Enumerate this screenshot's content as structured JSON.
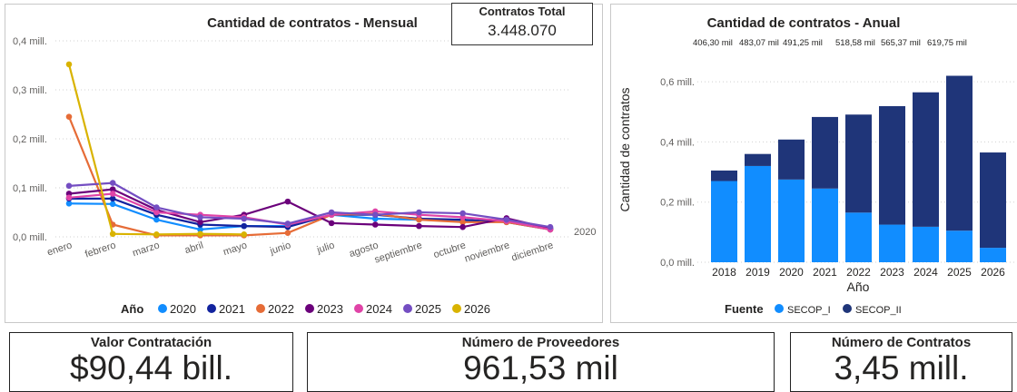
{
  "monthly": {
    "title": "Cantidad de contratos - Mensual",
    "y_ticks": [
      "0,0 mill.",
      "0,1 mill.",
      "0,2 mill.",
      "0,3 mill.",
      "0,4 mill."
    ],
    "end_label": "2020",
    "legend_title": "Año",
    "total_label": "Contratos Total",
    "total_value": "3.448.070"
  },
  "annual": {
    "title": "Cantidad de contratos - Anual",
    "y_ticks": [
      "0,0 mill.",
      "0,2 mill.",
      "0,4 mill.",
      "0,6 mill."
    ],
    "ylabel": "Cantidad de contratos",
    "xlabel": "Año",
    "legend_title": "Fuente"
  },
  "kpis": {
    "valor_label": "Valor Contratación",
    "valor_value": "$90,44 bill.",
    "proveedores_label": "Número de Proveedores",
    "proveedores_value": "961,53 mil",
    "contratos_label": "Número de Contratos",
    "contratos_value": "3,45 mill."
  },
  "colors": {
    "2020": "#118DFF",
    "2021": "#12239E",
    "2022": "#E66C37",
    "2023": "#6B007B",
    "2024": "#E044A7",
    "2025": "#744EC2",
    "2026": "#D9B300",
    "SECOP_I": "#118DFF",
    "SECOP_II": "#1F3579"
  },
  "chart_data": [
    {
      "type": "line",
      "title": "Cantidad de contratos - Mensual",
      "categories": [
        "enero",
        "febrero",
        "marzo",
        "abril",
        "mayo",
        "junio",
        "julio",
        "agosto",
        "septiembre",
        "octubre",
        "noviembre",
        "diciembre"
      ],
      "ylim": [
        0,
        0.4
      ],
      "unit": "mill.",
      "series": [
        {
          "name": "2020",
          "values": [
            0.068,
            0.067,
            0.035,
            0.015,
            0.022,
            0.022,
            0.045,
            0.037,
            0.035,
            0.032,
            0.033,
            0.018
          ]
        },
        {
          "name": "2021",
          "values": [
            0.078,
            0.078,
            0.045,
            0.025,
            0.022,
            0.02,
            0.045,
            0.045,
            0.037,
            0.035,
            0.03,
            0.015
          ]
        },
        {
          "name": "2022",
          "values": [
            0.245,
            0.025,
            0.003,
            0.003,
            0.003,
            0.008,
            0.045,
            0.047,
            0.035,
            0.03,
            0.03,
            0.015
          ]
        },
        {
          "name": "2023",
          "values": [
            0.088,
            0.097,
            0.055,
            0.03,
            0.045,
            0.072,
            0.028,
            0.025,
            0.022,
            0.02,
            0.038,
            0.017
          ]
        },
        {
          "name": "2024",
          "values": [
            0.08,
            0.088,
            0.05,
            0.045,
            0.04,
            0.025,
            0.045,
            0.052,
            0.045,
            0.04,
            0.032,
            0.015
          ]
        },
        {
          "name": "2025",
          "values": [
            0.104,
            0.11,
            0.06,
            0.04,
            0.037,
            0.027,
            0.05,
            0.045,
            0.05,
            0.048,
            0.035,
            0.02
          ]
        },
        {
          "name": "2026",
          "values": [
            0.352,
            0.006,
            0.005,
            0.006,
            0.005,
            null,
            null,
            null,
            null,
            null,
            null,
            null
          ]
        }
      ]
    },
    {
      "type": "bar",
      "title": "Cantidad de contratos - Anual",
      "stacked": true,
      "categories": [
        "2018",
        "2019",
        "2020",
        "2021",
        "2022",
        "2023",
        "2024",
        "2025",
        "2026"
      ],
      "totals_labels": [
        "406,30 mil",
        "483,07 mil",
        "491,25 mil",
        "518,58 mil",
        "565,37 mil",
        "619,75 mil"
      ],
      "ylim": [
        0,
        0.7
      ],
      "ylabel": "Cantidad de contratos",
      "xlabel": "Año",
      "series": [
        {
          "name": "SECOP_I",
          "values": [
            0.27,
            0.32,
            0.275,
            0.245,
            0.165,
            0.125,
            0.118,
            0.105,
            0.048
          ]
        },
        {
          "name": "SECOP_II",
          "values": [
            0.035,
            0.04,
            0.133,
            0.238,
            0.326,
            0.394,
            0.447,
            0.515,
            0.317
          ]
        }
      ]
    }
  ]
}
